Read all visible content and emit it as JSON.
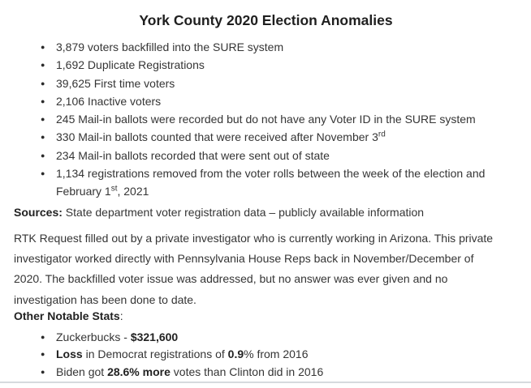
{
  "title": "York County 2020 Election Anomalies",
  "anomaly_items": [
    [
      {
        "t": "3,879 voters backfilled into the SURE system"
      }
    ],
    [
      {
        "t": "1,692 Duplicate Registrations"
      }
    ],
    [
      {
        "t": "39,625 First time voters"
      }
    ],
    [
      {
        "t": "2,106 Inactive voters"
      }
    ],
    [
      {
        "t": "245 Mail-in ballots were recorded but do not have any Voter ID in the SURE system"
      }
    ],
    [
      {
        "t": "330 Mail-in ballots counted that were received after November 3"
      },
      {
        "t": "rd",
        "sup": true
      }
    ],
    [
      {
        "t": "234 Mail-in ballots recorded that were sent out of state"
      }
    ],
    [
      {
        "t": "1,134 registrations removed from the voter rolls between the week of the election and"
      },
      {
        "br": true
      },
      {
        "t": "February 1"
      },
      {
        "t": "st",
        "sup": true
      },
      {
        "t": ", 2021"
      }
    ]
  ],
  "sources": {
    "label": "Sources:",
    "text": " State department voter registration data – publicly available information"
  },
  "rtk": {
    "lines": [
      "RTK Request filled out by a private investigator who is currently working in Arizona. This private",
      "investigator worked directly with Pennsylvania House Reps back in November/December of",
      "2020. The backfilled voter issue was addressed, but no answer was ever given and no",
      "investigation has been done to date."
    ]
  },
  "other_stats": {
    "heading": "Other Notable Stats",
    "colon": ":",
    "items": [
      [
        {
          "t": "Zuckerbucks - "
        },
        {
          "t": "$321,600",
          "b": true
        }
      ],
      [
        {
          "t": "Loss",
          "b": true
        },
        {
          "t": " in Democrat registrations of "
        },
        {
          "t": "0.9",
          "b": true
        },
        {
          "t": "% from 2016"
        }
      ],
      [
        {
          "t": "Biden got "
        },
        {
          "t": "28.6% more",
          "b": true
        },
        {
          "t": " votes than Clinton did in 2016"
        }
      ]
    ]
  },
  "divider_color": "#d6dade"
}
